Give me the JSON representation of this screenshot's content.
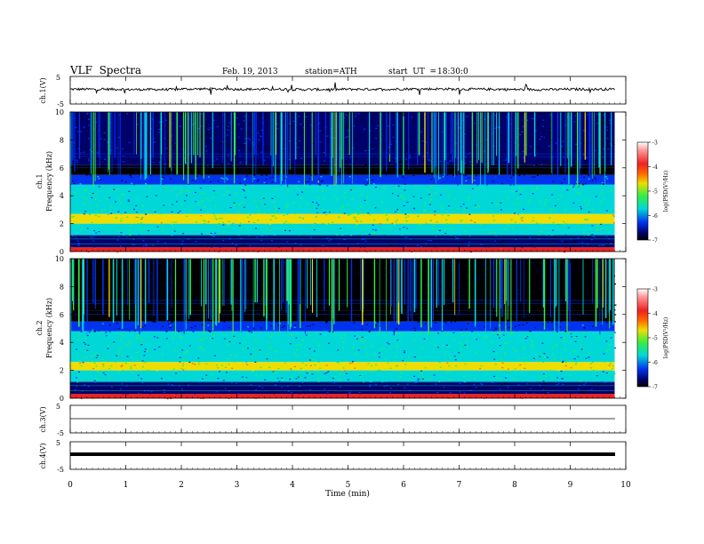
{
  "header": {
    "title": "VLF  Spectra",
    "date": "Feb. 19, 2013",
    "station": "station=ATH",
    "start_label": "start  UT  =",
    "start_time": "18:30:0"
  },
  "colors": {
    "c_black": "#000000",
    "c_navy": "#00006a",
    "c_blue": "#0033ee",
    "c_cyan": "#00d8d8",
    "c_green": "#33ee44",
    "c_yellow": "#eedd00",
    "c_orange": "#ff6600",
    "c_red": "#ee2222",
    "c_pink": "#ff9999"
  },
  "chart_data": [
    {
      "type": "line",
      "panel": "ch1-waveform",
      "ylabel": "ch.1(V)",
      "yticks": [
        "5",
        "-5"
      ],
      "ylim": [
        -5,
        5
      ],
      "x": [
        0,
        1,
        2,
        3,
        4,
        5,
        6,
        7,
        8,
        9,
        9.8
      ],
      "values": [
        0.2,
        0.1,
        0.3,
        0.2,
        0.1,
        0.2,
        0.3,
        0.2,
        0.1,
        0.2,
        0.2
      ]
    },
    {
      "type": "heatmap",
      "panel": "ch1-spectrogram",
      "ylabel": "ch.1\nFrequency (kHz)",
      "ylabel_line1": "ch.1",
      "ylabel_line2": "Frequency  (kHz)",
      "yticks": [
        "0",
        "2",
        "4",
        "6",
        "8",
        "10"
      ],
      "ylim": [
        0,
        10
      ],
      "xlim": [
        0,
        10
      ],
      "colorbar": {
        "label": "log(PSD(V²/Hz)",
        "ticks": [
          "-3",
          "-4",
          "-5",
          "-6",
          "-7"
        ],
        "range": [
          -7,
          -3
        ]
      },
      "bands_khz": [
        {
          "from": 0.0,
          "to": 0.3,
          "level": -3.5
        },
        {
          "from": 0.3,
          "to": 1.2,
          "level": -6.3
        },
        {
          "from": 1.2,
          "to": 2.0,
          "level": -5.3
        },
        {
          "from": 2.0,
          "to": 2.7,
          "level": -4.5
        },
        {
          "from": 2.7,
          "to": 4.8,
          "level": -5.2
        },
        {
          "from": 4.8,
          "to": 5.5,
          "level": -6.0
        },
        {
          "from": 5.5,
          "to": 6.2,
          "level": -6.8
        },
        {
          "from": 6.2,
          "to": 10.0,
          "level": -6.4
        }
      ]
    },
    {
      "type": "heatmap",
      "panel": "ch2-spectrogram",
      "ylabel_line1": "ch.2",
      "ylabel_line2": "Frequency  (kHz)",
      "yticks": [
        "0",
        "2",
        "4",
        "6",
        "8",
        "10"
      ],
      "ylim": [
        0,
        10
      ],
      "xlim": [
        0,
        10
      ],
      "colorbar": {
        "label": "log(PSD(V²/Hz)",
        "ticks": [
          "-3",
          "-4",
          "-5",
          "-6",
          "-7"
        ],
        "range": [
          -7,
          -3
        ]
      },
      "bands_khz": [
        {
          "from": 0.0,
          "to": 0.3,
          "level": -3.6
        },
        {
          "from": 0.3,
          "to": 1.2,
          "level": -6.3
        },
        {
          "from": 1.2,
          "to": 2.0,
          "level": -5.3
        },
        {
          "from": 2.0,
          "to": 2.6,
          "level": -4.4
        },
        {
          "from": 2.6,
          "to": 4.8,
          "level": -5.2
        },
        {
          "from": 4.8,
          "to": 5.5,
          "level": -6.1
        },
        {
          "from": 5.5,
          "to": 6.3,
          "level": -6.9
        },
        {
          "from": 6.3,
          "to": 10.0,
          "level": -6.9
        }
      ]
    },
    {
      "type": "line",
      "panel": "ch3-waveform",
      "ylabel": "ch.3(V)",
      "yticks": [
        "5",
        "-5"
      ],
      "ylim": [
        -5,
        5
      ],
      "x": [
        0,
        9.8
      ],
      "values": [
        0,
        0
      ]
    },
    {
      "type": "line",
      "panel": "ch4-waveform",
      "ylabel": "ch.4(V)",
      "yticks": [
        "5",
        "-5"
      ],
      "ylim": [
        -5,
        5
      ],
      "x": [
        0,
        9.8
      ],
      "values": [
        0,
        0
      ]
    }
  ],
  "xaxis": {
    "label": "Time  (min)",
    "ticks": [
      "0",
      "1",
      "2",
      "3",
      "4",
      "5",
      "6",
      "7",
      "8",
      "9",
      "10"
    ],
    "xlim": [
      0,
      10
    ]
  }
}
